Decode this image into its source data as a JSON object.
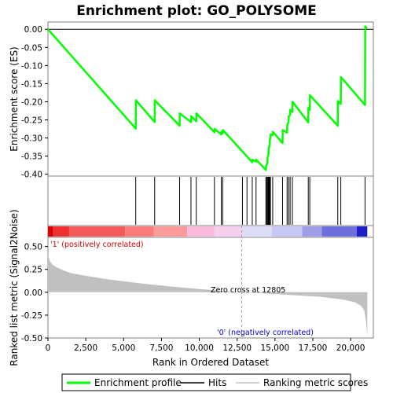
{
  "chart_data": [
    {
      "type": "line",
      "title": "Enrichment plot: GO_POLYSOME",
      "ylabel": "Enrichment score (ES)",
      "xlim": [
        0,
        21500
      ],
      "ylim": [
        -0.405,
        0.02
      ],
      "yticks": [
        "0.00",
        "-0.05",
        "-0.10",
        "-0.15",
        "-0.20",
        "-0.25",
        "-0.30",
        "-0.35",
        "-0.40"
      ],
      "ytick_values": [
        0.0,
        -0.05,
        -0.1,
        -0.15,
        -0.2,
        -0.25,
        -0.3,
        -0.35,
        -0.4
      ],
      "series": [
        {
          "name": "Enrichment profile",
          "color": "#00ff00",
          "x": [
            0,
            5800,
            5810,
            7050,
            7060,
            8700,
            8710,
            9450,
            9460,
            9800,
            9810,
            11000,
            11010,
            11450,
            11460,
            11550,
            11560,
            13500,
            13510,
            13750,
            13760,
            14400,
            14410,
            14500,
            14510,
            14580,
            14590,
            14650,
            14660,
            14700,
            14710,
            14850,
            14860,
            15500,
            15510,
            15800,
            15810,
            15900,
            15910,
            16000,
            16010,
            16150,
            16160,
            17200,
            17210,
            17300,
            17310,
            19150,
            19160,
            19350,
            19360,
            20950,
            20960,
            21000,
            21100
          ],
          "y": [
            0.0,
            -0.274,
            -0.196,
            -0.256,
            -0.196,
            -0.266,
            -0.232,
            -0.256,
            -0.24,
            -0.254,
            -0.232,
            -0.284,
            -0.275,
            -0.29,
            -0.283,
            -0.287,
            -0.278,
            -0.367,
            -0.36,
            -0.365,
            -0.36,
            -0.388,
            -0.377,
            -0.37,
            -0.355,
            -0.343,
            -0.328,
            -0.32,
            -0.305,
            -0.3,
            -0.29,
            -0.292,
            -0.283,
            -0.314,
            -0.278,
            -0.285,
            -0.265,
            -0.255,
            -0.24,
            -0.236,
            -0.222,
            -0.228,
            -0.2,
            -0.257,
            -0.217,
            -0.223,
            -0.182,
            -0.266,
            -0.198,
            -0.206,
            -0.132,
            -0.209,
            0.008,
            0.005,
            0.004
          ]
        }
      ]
    },
    {
      "type": "scatter",
      "name": "Hits",
      "xlim": [
        0,
        21500
      ],
      "hits": [
        5800,
        7050,
        8700,
        9450,
        9800,
        11000,
        11450,
        11550,
        12850,
        13150,
        13500,
        13750,
        14400,
        14450,
        14500,
        14550,
        14580,
        14620,
        14650,
        14700,
        14850,
        15500,
        15800,
        15900,
        16000,
        16150,
        17200,
        17300,
        19150,
        19350,
        20950
      ]
    },
    {
      "type": "heatmap",
      "name": "Ranked list color bar",
      "xlim": [
        0,
        21500
      ],
      "segments": [
        {
          "from": 0,
          "to": 350,
          "color": "#d80000"
        },
        {
          "from": 350,
          "to": 1400,
          "color": "#ef3030"
        },
        {
          "from": 1400,
          "to": 5100,
          "color": "#f75a5a"
        },
        {
          "from": 5100,
          "to": 7000,
          "color": "#fb7b7b"
        },
        {
          "from": 7000,
          "to": 9200,
          "color": "#fd9a9a"
        },
        {
          "from": 9200,
          "to": 11000,
          "color": "#fbb9db"
        },
        {
          "from": 11000,
          "to": 12800,
          "color": "#f6cfee"
        },
        {
          "from": 12800,
          "to": 14800,
          "color": "#dcdcf6"
        },
        {
          "from": 14800,
          "to": 16800,
          "color": "#c7c7f3"
        },
        {
          "from": 16800,
          "to": 18100,
          "color": "#9e9ee8"
        },
        {
          "from": 18100,
          "to": 20400,
          "color": "#6f6fdc"
        },
        {
          "from": 20400,
          "to": 21100,
          "color": "#1e1ec8"
        }
      ]
    },
    {
      "type": "area",
      "ylabel": "Ranked list metric (Signal2Noise)",
      "xlabel": "Rank in Ordered Dataset",
      "xlim": [
        0,
        21500
      ],
      "ylim": [
        -0.5,
        0.6
      ],
      "xticks": [
        "0",
        "2,500",
        "5,000",
        "7,500",
        "10,000",
        "12,500",
        "15,000",
        "17,500",
        "20,000"
      ],
      "xtick_values": [
        0,
        2500,
        5000,
        7500,
        10000,
        12500,
        15000,
        17500,
        20000
      ],
      "yticks": [
        "0.50",
        "0.25",
        "0.00",
        "-0.25",
        "-0.50"
      ],
      "ytick_values": [
        0.5,
        0.25,
        0.0,
        -0.25,
        -0.5
      ],
      "series": [
        {
          "name": "Ranking metric scores",
          "color": "#c0c0c0",
          "x": [
            0,
            20,
            100,
            300,
            600,
            1000,
            1500,
            2500,
            4000,
            6000,
            8000,
            10000,
            12000,
            12805,
            14000,
            16000,
            18000,
            19500,
            20300,
            20700,
            20900,
            21000,
            21100
          ],
          "y": [
            0.43,
            0.4,
            0.35,
            0.3,
            0.27,
            0.24,
            0.21,
            0.18,
            0.14,
            0.1,
            0.065,
            0.035,
            0.01,
            0.0,
            -0.01,
            -0.03,
            -0.05,
            -0.08,
            -0.11,
            -0.15,
            -0.2,
            -0.3,
            -0.48
          ]
        }
      ],
      "annotations": [
        "'1' (positively correlated)",
        "Zero cross at 12805",
        "'0' (negatively correlated)"
      ],
      "zero_cross": 12805
    }
  ],
  "legend": {
    "items": [
      {
        "label": "Enrichment profile",
        "color": "#00ff00"
      },
      {
        "label": "Hits",
        "color": "#000000"
      },
      {
        "label": "Ranking metric scores",
        "color": "#c0c0c0"
      }
    ]
  }
}
